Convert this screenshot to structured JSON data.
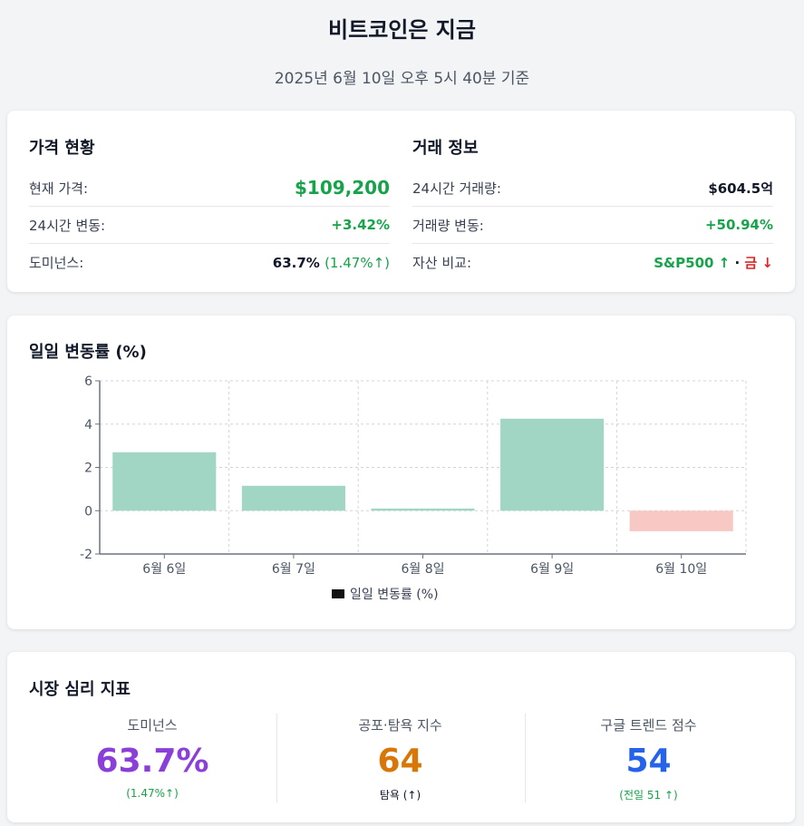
{
  "header": {
    "title": "비트코인은 지금",
    "subtitle": "2025년 6월 10일 오후 5시 40분 기준"
  },
  "price_status": {
    "title": "가격 현황",
    "rows": [
      {
        "label": "현재 가격:",
        "value": "$109,200"
      },
      {
        "label": "24시간 변동:",
        "value": "+3.42%"
      },
      {
        "label": "도미넌스:",
        "value": "63.7%",
        "change": "(1.47%↑)"
      }
    ]
  },
  "trade_info": {
    "title": "거래 정보",
    "rows": [
      {
        "label": "24시간 거래량:",
        "value": "$604.5억"
      },
      {
        "label": "거래량 변동:",
        "value": "+50.94%"
      },
      {
        "label": "자산 비교:",
        "value_a": "S&P500 ↑",
        "sep": "·",
        "value_b": "금 ↓"
      }
    ]
  },
  "chart_section": {
    "title": "일일 변동률 (%)"
  },
  "chart_data": {
    "type": "bar",
    "categories": [
      "6월 6일",
      "6월 7일",
      "6월 8일",
      "6월 9일",
      "6월 10일"
    ],
    "series": [
      {
        "name": "일일 변동률 (%)",
        "values": [
          2.7,
          1.15,
          0.1,
          4.25,
          -0.95
        ]
      }
    ],
    "ylim": [
      -2,
      6
    ],
    "yticks": [
      "-2",
      "0",
      "2",
      "4",
      "6"
    ],
    "grid": true,
    "legend": "bottom",
    "colors": {
      "positive": "#a0d6c3",
      "negative": "#f8c9c4"
    }
  },
  "sentiment": {
    "title": "시장 심리 지표",
    "items": [
      {
        "label": "도미넌스",
        "value": "63.7%",
        "sub": "(1.47%↑)",
        "color": "#8b3fd9"
      },
      {
        "label": "공포·탐욕 지수",
        "value": "64",
        "sub": "탐욕 (↑)",
        "color": "#d97706"
      },
      {
        "label": "구글 트렌드 점수",
        "value": "54",
        "sub": "(전일 51 ↑)",
        "color": "#2563eb"
      }
    ]
  }
}
